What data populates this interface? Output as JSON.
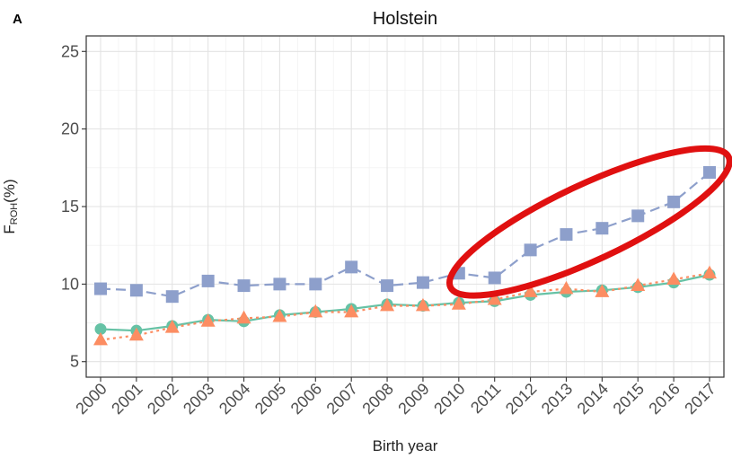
{
  "panel_letter": "A",
  "chart_data": {
    "type": "line",
    "title": "Holstein",
    "xlabel": "Birth year",
    "ylabel_main": "F",
    "ylabel_sub": "ROH",
    "ylabel_suffix": "(%)",
    "x": [
      "2000",
      "2001",
      "2002",
      "2003",
      "2004",
      "2005",
      "2006",
      "2007",
      "2008",
      "2009",
      "2010",
      "2011",
      "2012",
      "2013",
      "2014",
      "2015",
      "2016",
      "2017"
    ],
    "ylim": [
      4,
      26
    ],
    "yticks": [
      5,
      10,
      15,
      20,
      25
    ],
    "grid": true,
    "series": [
      {
        "color": "#8d9fcb",
        "marker": "square",
        "line": "dashed",
        "values": [
          9.7,
          9.6,
          9.2,
          10.2,
          9.9,
          10.0,
          10.0,
          11.1,
          9.9,
          10.1,
          10.7,
          10.4,
          12.2,
          13.2,
          13.6,
          14.4,
          15.3,
          17.2
        ]
      },
      {
        "color": "#66c2a5",
        "marker": "circle",
        "line": "solid",
        "values": [
          7.1,
          7.0,
          7.3,
          7.7,
          7.6,
          8.0,
          8.2,
          8.4,
          8.7,
          8.6,
          8.8,
          8.9,
          9.3,
          9.5,
          9.6,
          9.8,
          10.1,
          10.6
        ]
      },
      {
        "color": "#fc8d62",
        "marker": "triangle",
        "line": "dotted",
        "values": [
          6.4,
          6.7,
          7.2,
          7.6,
          7.8,
          7.9,
          8.2,
          8.2,
          8.6,
          8.6,
          8.7,
          9.0,
          9.5,
          9.7,
          9.5,
          9.9,
          10.3,
          10.7
        ]
      }
    ],
    "annotation": {
      "shape": "ellipse",
      "color": "#e01010",
      "x_range": [
        "2011",
        "2017"
      ],
      "y_range": [
        10,
        18
      ]
    }
  }
}
